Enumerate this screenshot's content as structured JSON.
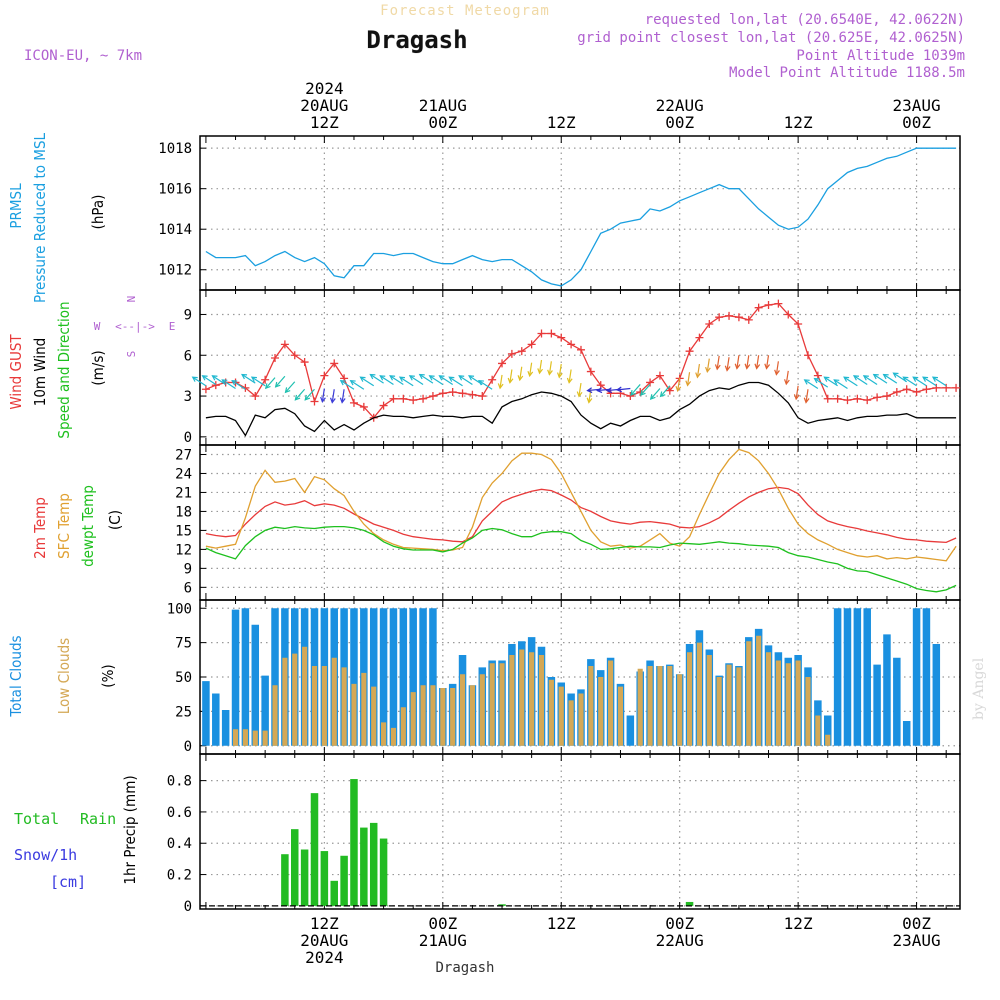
{
  "header": {
    "title": "Forecast Meteogram",
    "location": "Dragash",
    "model": "ICON-EU, ~ 7km",
    "requested": "requested lon,lat (20.6540E, 42.0622N)",
    "grid_point": "grid point closest lon,lat (20.625E, 42.0625N)",
    "point_altitude": "Point Altitude 1039m",
    "model_altitude": "Model Point Altitude 1188.5m",
    "footer_location": "Dragash",
    "credit": "by Angel"
  },
  "colors": {
    "pressure": "#1a9fe0",
    "gust": "#e83a3a",
    "wind": "#000000",
    "t2m": "#e83a3a",
    "sfc": "#e0a030",
    "dew": "#1ec01e",
    "total_cloud": "#1a90e0",
    "low_cloud": "#d4a855",
    "rain": "#22bb22",
    "snow": "#3a3ae0",
    "purple": "#b060d0"
  },
  "time_axis": {
    "top_labels": [
      {
        "hour": 12,
        "lines": [
          "2024",
          "20AUG",
          "12Z"
        ]
      },
      {
        "hour": 24,
        "lines": [
          "21AUG",
          "00Z"
        ]
      },
      {
        "hour": 36,
        "lines": [
          "12Z"
        ]
      },
      {
        "hour": 48,
        "lines": [
          "22AUG",
          "00Z"
        ]
      },
      {
        "hour": 60,
        "lines": [
          "12Z"
        ]
      },
      {
        "hour": 72,
        "lines": [
          "23AUG",
          "00Z"
        ]
      }
    ],
    "bottom_labels": [
      {
        "hour": 12,
        "lines": [
          "12Z",
          "20AUG",
          "2024"
        ]
      },
      {
        "hour": 24,
        "lines": [
          "00Z",
          "21AUG"
        ]
      },
      {
        "hour": 36,
        "lines": [
          "12Z"
        ]
      },
      {
        "hour": 48,
        "lines": [
          "00Z",
          "22AUG"
        ]
      },
      {
        "hour": 60,
        "lines": [
          "12Z"
        ]
      },
      {
        "hour": 72,
        "lines": [
          "00Z",
          "23AUG"
        ]
      }
    ]
  },
  "chart_data": [
    {
      "type": "line",
      "panel": "pressure",
      "ylabel_lines": [
        "PRMSL",
        "Pressure Reduced to MSL"
      ],
      "unit": "(hPa)",
      "ylim": [
        1011,
        1018.6
      ],
      "yticks": [
        1012,
        1014,
        1016,
        1018
      ],
      "series": [
        {
          "name": "PRMSL",
          "x": [
            0,
            1,
            2,
            3,
            4,
            5,
            6,
            7,
            8,
            9,
            10,
            11,
            12,
            13,
            14,
            15,
            16,
            17,
            18,
            19,
            20,
            21,
            22,
            23,
            24,
            25,
            26,
            27,
            28,
            29,
            30,
            31,
            32,
            33,
            34,
            35,
            36,
            37,
            38,
            39,
            40,
            41,
            42,
            43,
            44,
            45,
            46,
            47,
            48,
            49,
            50,
            51,
            52,
            53,
            54,
            55,
            56,
            57,
            58,
            59,
            60,
            61,
            62,
            63,
            64,
            65,
            66,
            67,
            68,
            69,
            70,
            71,
            72,
            73,
            74,
            75,
            76
          ],
          "values": [
            1012.9,
            1012.6,
            1012.6,
            1012.6,
            1012.7,
            1012.2,
            1012.4,
            1012.7,
            1012.9,
            1012.6,
            1012.4,
            1012.6,
            1012.3,
            1011.7,
            1011.6,
            1012.2,
            1012.2,
            1012.8,
            1012.8,
            1012.7,
            1012.8,
            1012.8,
            1012.6,
            1012.4,
            1012.3,
            1012.3,
            1012.5,
            1012.7,
            1012.5,
            1012.4,
            1012.5,
            1012.5,
            1012.2,
            1011.9,
            1011.5,
            1011.3,
            1011.2,
            1011.5,
            1012.0,
            1012.9,
            1013.8,
            1014.0,
            1014.3,
            1014.4,
            1014.5,
            1015.0,
            1014.9,
            1015.1,
            1015.4,
            1015.6,
            1015.8,
            1016.0,
            1016.2,
            1016.0,
            1016.0,
            1015.5,
            1015.0,
            1014.6,
            1014.2,
            1014.0,
            1014.1,
            1014.5,
            1015.2,
            1016.0,
            1016.4,
            1016.8,
            1017.0,
            1017.1,
            1017.3,
            1017.5,
            1017.6,
            1017.8,
            1018.0,
            1018.0,
            1018.0,
            1018.0,
            1018.0
          ]
        }
      ]
    },
    {
      "type": "line",
      "panel": "wind",
      "ylabel_lines": [
        "Wind GUST",
        "10m Wind",
        "Speed and Direction"
      ],
      "unit": "(m/s)",
      "compass": {
        "n": "N",
        "w": "W",
        "e": "E",
        "s": "S"
      },
      "ylim": [
        -0.6,
        10.8
      ],
      "yticks": [
        0,
        3,
        6,
        9
      ],
      "series": [
        {
          "name": "Wind GUST",
          "values": [
            3.5,
            3.8,
            4.0,
            4.0,
            3.6,
            3.0,
            4.2,
            5.8,
            6.8,
            6.0,
            5.5,
            2.6,
            4.5,
            5.4,
            4.3,
            2.5,
            2.2,
            1.4,
            2.3,
            2.8,
            2.8,
            2.7,
            2.8,
            3.0,
            3.2,
            3.3,
            3.2,
            3.1,
            3.0,
            4.2,
            5.4,
            6.1,
            6.3,
            6.8,
            7.6,
            7.6,
            7.3,
            6.8,
            6.4,
            4.8,
            3.8,
            3.2,
            3.2,
            3.0,
            3.3,
            4.0,
            4.5,
            3.4,
            4.3,
            6.3,
            7.3,
            8.3,
            8.8,
            8.9,
            8.8,
            8.6,
            9.5,
            9.7,
            9.8,
            9.0,
            8.3,
            6.0,
            4.5,
            2.8,
            2.8,
            2.7,
            2.8,
            2.7,
            2.9,
            3.0,
            3.3,
            3.5,
            3.3,
            3.5,
            3.6,
            3.6,
            3.6
          ]
        },
        {
          "name": "10m Wind",
          "values": [
            1.4,
            1.5,
            1.5,
            1.2,
            0.1,
            1.6,
            1.4,
            2.0,
            2.1,
            1.7,
            0.8,
            0.4,
            1.2,
            0.5,
            0.9,
            0.5,
            1.0,
            1.4,
            1.6,
            1.5,
            1.5,
            1.4,
            1.5,
            1.6,
            1.5,
            1.5,
            1.4,
            1.5,
            1.5,
            1.0,
            2.2,
            2.6,
            2.8,
            3.1,
            3.3,
            3.2,
            3.0,
            2.6,
            1.6,
            1.0,
            0.6,
            1.0,
            0.8,
            1.2,
            1.5,
            1.5,
            1.2,
            1.4,
            2.0,
            2.4,
            3.0,
            3.4,
            3.6,
            3.5,
            3.8,
            4.0,
            4.0,
            3.8,
            3.2,
            2.5,
            1.4,
            1.0,
            1.2,
            1.3,
            1.4,
            1.2,
            1.4,
            1.5,
            1.5,
            1.6,
            1.6,
            1.7,
            1.4,
            1.4,
            1.4,
            1.4,
            1.4
          ]
        }
      ],
      "barbs": [
        {
          "start": 0,
          "end": 7,
          "dir": "nw",
          "color": "#20b8d0"
        },
        {
          "start": 7,
          "end": 12,
          "dir": "sw",
          "color": "#20c0b0"
        },
        {
          "start": 12,
          "end": 15,
          "dir": "s",
          "color": "#3c3cd8"
        },
        {
          "start": 15,
          "end": 24,
          "dir": "nw",
          "color": "#20b8d0"
        },
        {
          "start": 24,
          "end": 30,
          "dir": "nw",
          "color": "#20b8d0"
        },
        {
          "start": 30,
          "end": 40,
          "dir": "s",
          "color": "#e0c020"
        },
        {
          "start": 40,
          "end": 44,
          "dir": "w",
          "color": "#3030d0"
        },
        {
          "start": 44,
          "end": 48,
          "dir": "sw",
          "color": "#20c0b0"
        },
        {
          "start": 48,
          "end": 52,
          "dir": "s",
          "color": "#e0a030"
        },
        {
          "start": 52,
          "end": 62,
          "dir": "s",
          "color": "#e06030"
        },
        {
          "start": 62,
          "end": 76,
          "dir": "nw",
          "color": "#20b8d0"
        }
      ]
    },
    {
      "type": "line",
      "panel": "temperature",
      "ylabel_lines": [
        "2m Temp",
        "SFC Temp",
        "dewpt Temp"
      ],
      "unit": "(C)",
      "ylim": [
        4,
        28.5
      ],
      "yticks": [
        6,
        9,
        12,
        15,
        18,
        21,
        24,
        27
      ],
      "series": [
        {
          "name": "2m Temp",
          "values": [
            14.5,
            14.2,
            14.0,
            14.2,
            16.0,
            17.5,
            18.8,
            19.5,
            19.0,
            19.2,
            19.7,
            18.9,
            19.2,
            19.0,
            18.5,
            17.6,
            16.8,
            16.0,
            15.5,
            15.0,
            14.4,
            14.0,
            13.8,
            13.6,
            13.5,
            13.3,
            13.2,
            14.0,
            16.5,
            18.0,
            19.5,
            20.2,
            20.7,
            21.2,
            21.5,
            21.3,
            20.6,
            19.8,
            18.6,
            18.0,
            17.2,
            16.5,
            16.2,
            16.0,
            16.3,
            16.4,
            16.2,
            16.0,
            15.5,
            15.4,
            15.6,
            16.2,
            17.0,
            18.2,
            19.3,
            20.3,
            21.0,
            21.6,
            21.8,
            21.6,
            20.8,
            19.0,
            17.5,
            16.5,
            16.0,
            15.6,
            15.3,
            14.9,
            14.6,
            14.3,
            13.9,
            13.6,
            13.5,
            13.3,
            13.2,
            13.1,
            13.8
          ]
        },
        {
          "name": "SFC Temp",
          "values": [
            12.5,
            12.2,
            12.5,
            12.8,
            17.0,
            22.0,
            24.5,
            22.6,
            22.8,
            23.2,
            21.0,
            23.5,
            23.0,
            21.6,
            20.5,
            18.0,
            16.0,
            14.5,
            13.5,
            12.8,
            12.3,
            12.2,
            12.1,
            12.0,
            11.8,
            11.9,
            12.3,
            15.5,
            20.2,
            22.5,
            24.0,
            26.0,
            27.2,
            27.2,
            27.0,
            26.2,
            24.0,
            21.0,
            18.0,
            15.0,
            13.2,
            12.5,
            12.7,
            12.2,
            12.5,
            13.5,
            14.5,
            13.0,
            12.5,
            14.0,
            17.5,
            20.8,
            24.0,
            26.2,
            27.8,
            27.3,
            26.0,
            24.0,
            21.5,
            18.5,
            16.0,
            14.5,
            13.5,
            12.8,
            12.0,
            11.5,
            11.0,
            10.8,
            11.0,
            10.5,
            10.7,
            10.5,
            10.8,
            10.6,
            10.4,
            10.2,
            12.5
          ]
        },
        {
          "name": "dewpt Temp",
          "values": [
            12.2,
            11.5,
            11.0,
            10.5,
            12.6,
            14.0,
            15.0,
            15.5,
            15.3,
            15.6,
            15.4,
            15.3,
            15.5,
            15.6,
            15.6,
            15.4,
            15.0,
            14.3,
            13.2,
            12.5,
            12.1,
            11.9,
            11.9,
            11.9,
            11.6,
            12.0,
            13.0,
            13.8,
            15.0,
            15.3,
            15.1,
            14.5,
            14.0,
            14.0,
            14.6,
            14.8,
            14.8,
            14.5,
            13.4,
            12.8,
            12.0,
            12.1,
            12.3,
            12.5,
            12.4,
            12.4,
            12.3,
            12.7,
            13.0,
            12.9,
            12.8,
            13.0,
            13.2,
            13.0,
            12.9,
            12.7,
            12.6,
            12.5,
            12.3,
            11.5,
            11.0,
            10.8,
            10.4,
            10.0,
            9.7,
            9.0,
            8.6,
            8.5,
            8.0,
            7.5,
            7.0,
            6.5,
            5.8,
            5.5,
            5.3,
            5.6,
            6.3
          ]
        }
      ]
    },
    {
      "type": "bar",
      "panel": "clouds",
      "ylabel_lines": [
        "Total Clouds",
        "Low Clouds"
      ],
      "unit": "(%)",
      "ylim": [
        -6,
        106
      ],
      "yticks": [
        0,
        25,
        50,
        75,
        100
      ],
      "series": [
        {
          "name": "Total Clouds",
          "values": [
            47,
            38,
            26,
            99,
            100,
            88,
            51,
            100,
            100,
            100,
            100,
            100,
            100,
            100,
            100,
            100,
            100,
            100,
            100,
            100,
            100,
            100,
            100,
            100,
            42,
            45,
            66,
            44,
            57,
            62,
            62,
            74,
            76,
            79,
            72,
            50,
            46,
            38,
            41,
            63,
            55,
            64,
            45,
            22,
            54,
            62,
            58,
            59,
            52,
            74,
            84,
            70,
            51,
            60,
            58,
            79,
            85,
            73,
            68,
            64,
            66,
            57,
            33,
            22,
            100,
            100,
            100,
            100,
            59,
            81,
            64,
            18,
            100,
            100,
            74,
            0,
            0
          ]
        },
        {
          "name": "Low Clouds",
          "values": [
            0,
            0,
            0,
            12,
            12,
            11,
            11,
            44,
            64,
            67,
            72,
            58,
            58,
            64,
            57,
            45,
            53,
            43,
            17,
            13,
            28,
            39,
            44,
            44,
            42,
            42,
            52,
            44,
            52,
            60,
            60,
            66,
            70,
            68,
            66,
            48,
            43,
            33,
            38,
            58,
            50,
            62,
            43,
            0,
            56,
            58,
            58,
            58,
            52,
            68,
            75,
            66,
            50,
            59,
            57,
            76,
            80,
            68,
            62,
            60,
            62,
            50,
            22,
            8,
            0,
            0,
            0,
            0,
            0,
            0,
            0,
            0,
            0,
            0,
            0,
            0,
            0
          ]
        }
      ]
    },
    {
      "type": "bar",
      "panel": "precipitation",
      "ylabel_lines": [
        "Total",
        "Rain",
        "Snow/1h",
        "[cm]"
      ],
      "unit": "1hr Precip (mm)",
      "ylim": [
        -0.02,
        0.97
      ],
      "yticks": [
        0,
        0.2,
        0.4,
        0.6,
        0.8
      ],
      "ytick_labels": [
        "0",
        "0.2",
        "0.4",
        "0.6",
        "0.8"
      ],
      "series": [
        {
          "name": "Total Rain",
          "values": [
            0,
            0,
            0,
            0,
            0,
            0,
            0,
            0,
            0.33,
            0.49,
            0.36,
            0.72,
            0.35,
            0.16,
            0.32,
            0.81,
            0.5,
            0.53,
            0.43,
            0,
            0,
            0,
            0,
            0,
            0,
            0,
            0,
            0,
            0,
            0,
            0.01,
            0,
            0,
            0,
            0,
            0,
            0,
            0,
            0,
            0,
            0,
            0,
            0,
            0,
            0,
            0,
            0,
            0,
            0,
            0.025,
            0,
            0,
            0,
            0,
            0,
            0,
            0,
            0,
            0,
            0,
            0,
            0,
            0,
            0,
            0,
            0,
            0,
            0,
            0,
            0,
            0,
            0,
            0,
            0,
            0,
            0,
            0
          ]
        }
      ]
    }
  ]
}
